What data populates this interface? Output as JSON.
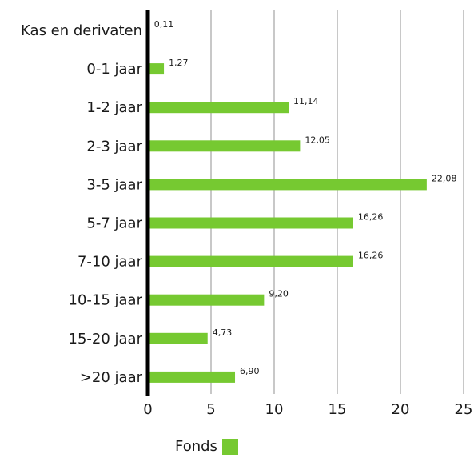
{
  "chart_data": {
    "type": "bar",
    "orientation": "horizontal",
    "categories": [
      "Kas en derivaten",
      "0-1 jaar",
      "1-2 jaar",
      "2-3 jaar",
      "3-5 jaar",
      "5-7 jaar",
      "7-10 jaar",
      "10-15 jaar",
      "15-20 jaar",
      ">20 jaar"
    ],
    "series": [
      {
        "name": "Fonds",
        "values": [
          0.11,
          1.27,
          11.14,
          12.05,
          22.08,
          16.26,
          16.26,
          9.2,
          4.73,
          6.9
        ]
      }
    ],
    "data_labels": [
      "0,11",
      "1,27",
      "11,14",
      "12,05",
      "22,08",
      "16,26",
      "16,26",
      "9,20",
      "4,73",
      "6,90"
    ],
    "xlim": [
      0,
      25
    ],
    "xticks": [
      "0",
      "5",
      "10",
      "15",
      "20",
      "25"
    ],
    "grid": true,
    "legend_position": "bottom",
    "colors": {
      "bar": "#76c931",
      "grid": "#c8c8c8",
      "axis": "#000000"
    }
  }
}
